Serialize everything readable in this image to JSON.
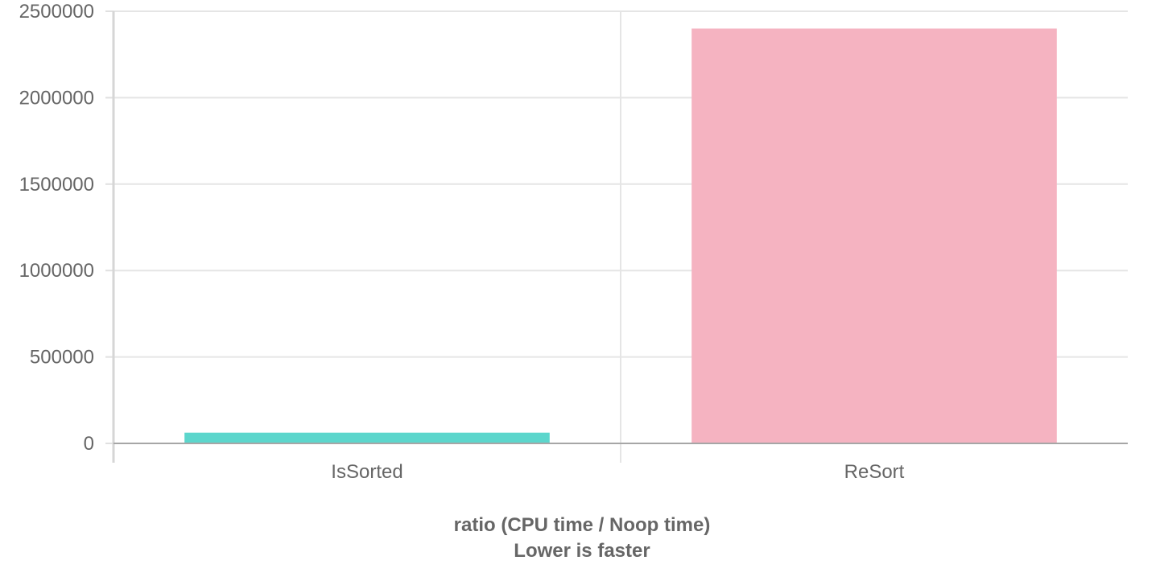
{
  "chart_data": {
    "type": "bar",
    "categories": [
      "IsSorted",
      "ReSort"
    ],
    "values": [
      62000,
      2400000
    ],
    "colors": [
      "#5cd6cc",
      "#f5b3c1"
    ],
    "xlabel": "ratio (CPU time / Noop time)",
    "xlabel_note": "Lower is faster",
    "ylim": [
      0,
      2500000
    ],
    "yticks": [
      0,
      500000,
      1000000,
      1500000,
      2000000,
      2500000
    ],
    "ytick_labels": [
      "0",
      "500000",
      "1000000",
      "1500000",
      "2000000",
      "2500000"
    ],
    "grid": true,
    "legend": "none"
  }
}
